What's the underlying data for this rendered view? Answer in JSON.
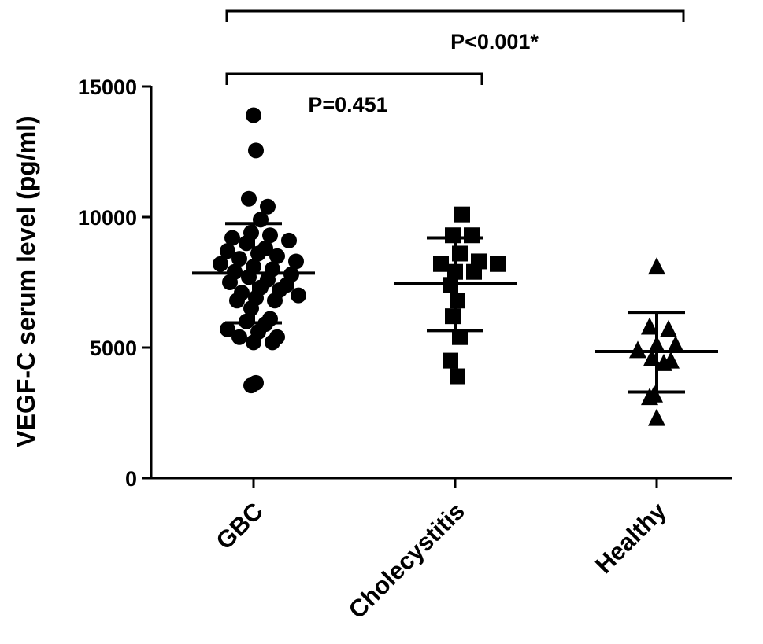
{
  "chart_data": {
    "type": "scatter",
    "ylabel": "VEGF-C serum level (pg/ml)",
    "xlabel": "",
    "ylim": [
      0,
      15000
    ],
    "yticks": [
      0,
      5000,
      10000,
      15000
    ],
    "grid": false,
    "categories": [
      "GBC",
      "Cholecystitis",
      "Healthy"
    ],
    "series": [
      {
        "category": "GBC",
        "marker": "circle",
        "values": [
          13900,
          12550,
          10700,
          10400,
          9900,
          9400,
          9300,
          9200,
          9100,
          9000,
          8800,
          8700,
          8600,
          8500,
          8400,
          8300,
          8200,
          8100,
          8000,
          7900,
          7800,
          7700,
          7600,
          7500,
          7400,
          7300,
          7200,
          7100,
          7000,
          6900,
          6800,
          6800,
          6500,
          6100,
          6000,
          5900,
          5700,
          5600,
          5400,
          5400,
          5200,
          5200,
          3650,
          3550
        ],
        "mean": 7850,
        "sd_low": 5950,
        "sd_high": 9750
      },
      {
        "category": "Cholecystitis",
        "marker": "square",
        "values": [
          10100,
          9300,
          9300,
          8600,
          8300,
          8200,
          8200,
          7900,
          7900,
          7400,
          6800,
          6200,
          5400,
          4500,
          3900
        ],
        "mean": 7450,
        "sd_low": 5650,
        "sd_high": 9200
      },
      {
        "category": "Healthy",
        "marker": "triangle",
        "values": [
          8100,
          5800,
          5700,
          5100,
          5100,
          4900,
          4600,
          4500,
          4400,
          3200,
          3100,
          2300
        ],
        "mean": 4850,
        "sd_low": 3300,
        "sd_high": 6350
      }
    ],
    "annotations": [
      {
        "text": "P=0.451",
        "from": "GBC",
        "to": "Cholecystitis"
      },
      {
        "text": "P<0.001*",
        "from": "GBC",
        "to": "Healthy"
      }
    ]
  }
}
